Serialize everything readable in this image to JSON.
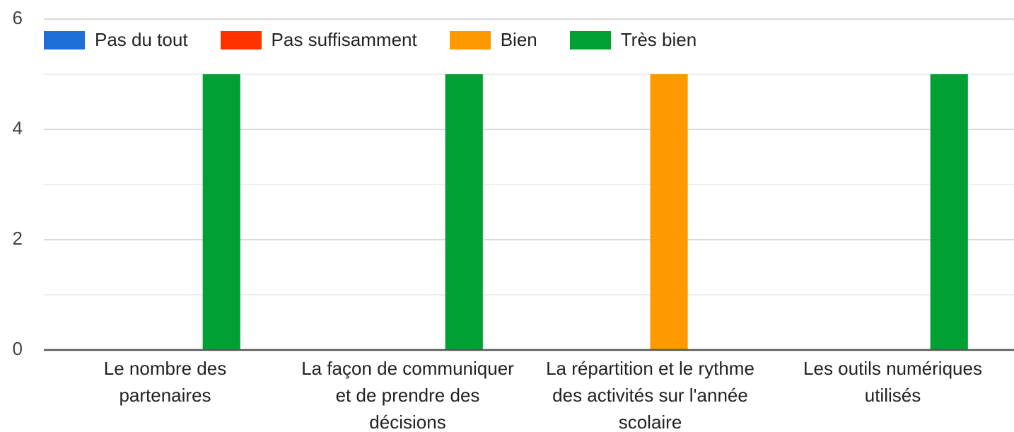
{
  "chart_data": {
    "type": "bar",
    "categories": [
      "Le nombre des partenaires",
      "La façon de communiquer et de prendre des décisions",
      "La répartition et le rythme des activités sur l'année scolaire",
      "Les outils numériques utilisés"
    ],
    "series": [
      {
        "name": "Pas du tout",
        "color": "#1f6fd8",
        "values": [
          0,
          0,
          0,
          0
        ]
      },
      {
        "name": "Pas suffisamment",
        "color": "#ff3300",
        "values": [
          0,
          0,
          0,
          0
        ]
      },
      {
        "name": "Bien",
        "color": "#ff9900",
        "values": [
          0,
          0,
          5,
          0
        ]
      },
      {
        "name": "Très bien",
        "color": "#00a032",
        "values": [
          5,
          5,
          0,
          5
        ]
      }
    ],
    "ylim": [
      0,
      6
    ],
    "yticks": [
      0,
      2,
      4,
      6
    ],
    "minor_yticks": [
      1,
      3,
      5
    ],
    "grid": true,
    "legend": "top"
  }
}
